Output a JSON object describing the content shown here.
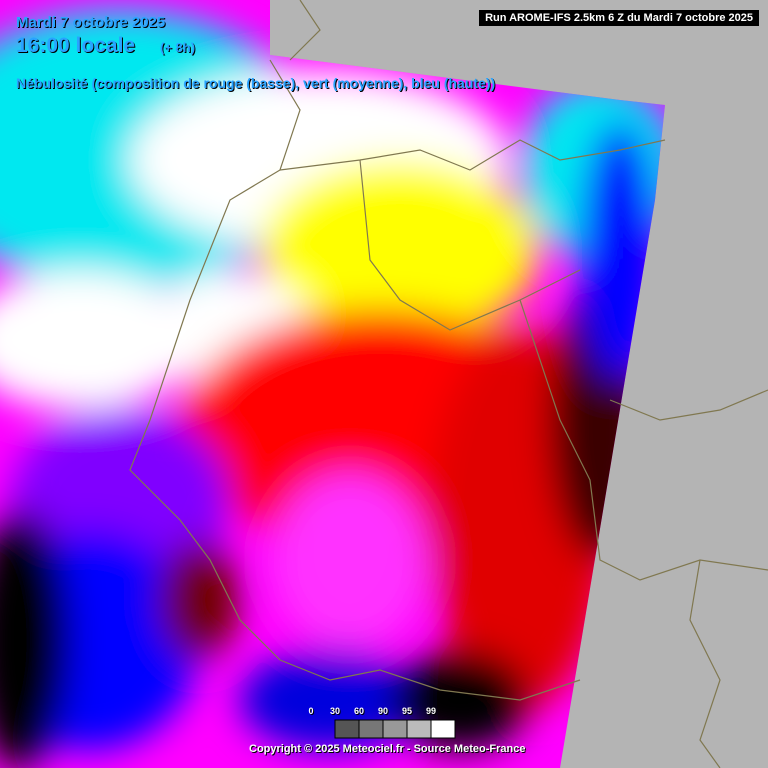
{
  "header": {
    "date": "Mardi 7 octobre 2025",
    "time": "16:00 locale",
    "offset": "(+ 8h)",
    "description": "Nébulosité (composition de rouge (basse), vert (moyenne), bleu (haute))",
    "run": "Run AROME-IFS 2.5km 6 Z du Mardi 7 octobre 2025"
  },
  "legend": {
    "ticks": [
      0,
      30,
      60,
      90,
      95,
      99
    ]
  },
  "footer": {
    "copyright": "Copyright © 2025 Meteociel.fr - Source Meteo-France"
  }
}
